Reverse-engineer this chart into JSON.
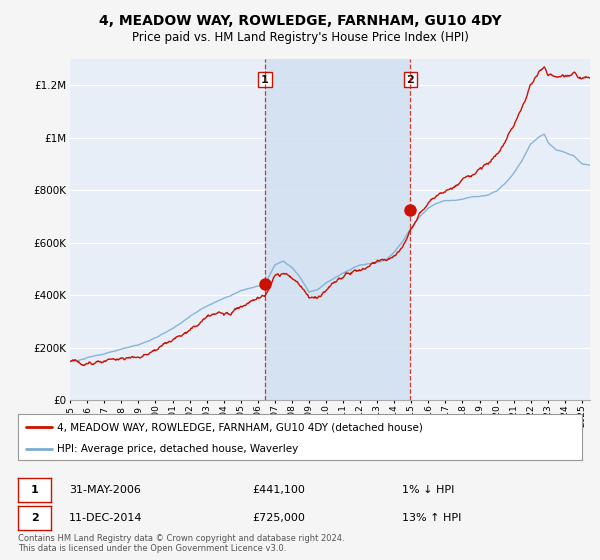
{
  "title": "4, MEADOW WAY, ROWLEDGE, FARNHAM, GU10 4DY",
  "subtitle": "Price paid vs. HM Land Registry's House Price Index (HPI)",
  "ylabel_ticks": [
    "£0",
    "£200K",
    "£400K",
    "£600K",
    "£800K",
    "£1M",
    "£1.2M"
  ],
  "ytick_vals": [
    0,
    200000,
    400000,
    600000,
    800000,
    1000000,
    1200000
  ],
  "ylim": [
    0,
    1300000
  ],
  "xlim_start": 1995.0,
  "xlim_end": 2025.5,
  "sale1_x": 2006.42,
  "sale1_y": 441100,
  "sale2_x": 2014.95,
  "sale2_y": 725000,
  "sale1_date": "31-MAY-2006",
  "sale1_price": "£441,100",
  "sale1_hpi": "1% ↓ HPI",
  "sale2_date": "11-DEC-2014",
  "sale2_price": "£725,000",
  "sale2_hpi": "13% ↑ HPI",
  "legend_line1": "4, MEADOW WAY, ROWLEDGE, FARNHAM, GU10 4DY (detached house)",
  "legend_line2": "HPI: Average price, detached house, Waverley",
  "footer": "Contains HM Land Registry data © Crown copyright and database right 2024.\nThis data is licensed under the Open Government Licence v3.0.",
  "hpi_color": "#7bafd4",
  "price_color": "#cc1100",
  "background_color": "#f5f5f5",
  "plot_bg": "#e8eef8",
  "shade_color": "#d0dff0",
  "grid_color": "#ffffff",
  "vline_color": "#cc1100"
}
